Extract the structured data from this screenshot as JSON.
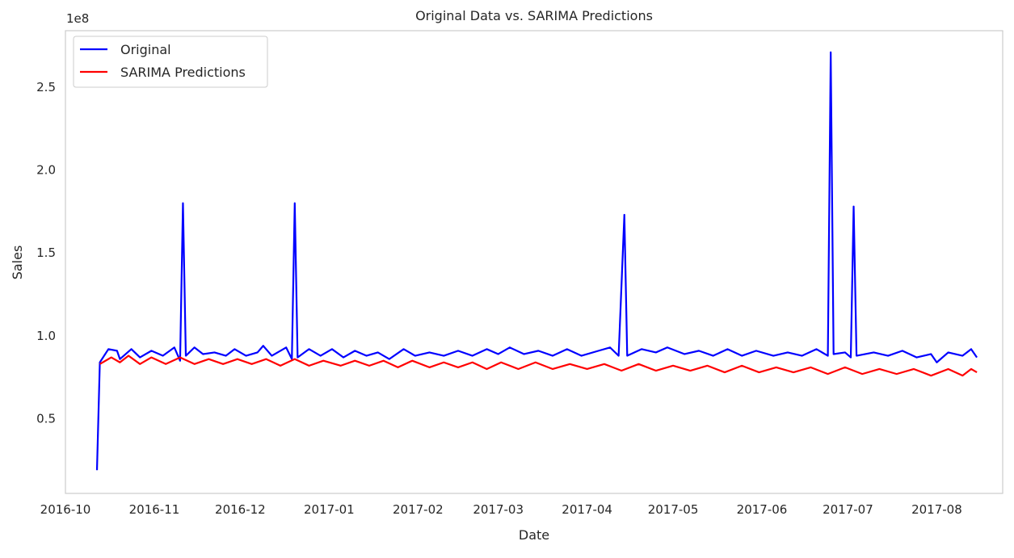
{
  "chart_data": {
    "type": "line",
    "title": "Original Data vs. SARIMA Predictions",
    "xlabel": "Date",
    "ylabel": "Sales",
    "y_offset_label": "1e8",
    "y_scale": 100000000,
    "xlim": [
      "2016-10-01",
      "2017-08-24"
    ],
    "ylim": [
      5000000,
      284000000
    ],
    "grid": false,
    "legend_position": "top-left",
    "x_ticks": [
      {
        "date": "2016-10-01",
        "label": "2016-10"
      },
      {
        "date": "2016-11-01",
        "label": "2016-11"
      },
      {
        "date": "2016-12-01",
        "label": "2016-12"
      },
      {
        "date": "2017-01-01",
        "label": "2017-01"
      },
      {
        "date": "2017-02-01",
        "label": "2017-02"
      },
      {
        "date": "2017-03-01",
        "label": "2017-03"
      },
      {
        "date": "2017-04-01",
        "label": "2017-04"
      },
      {
        "date": "2017-05-01",
        "label": "2017-05"
      },
      {
        "date": "2017-06-01",
        "label": "2017-06"
      },
      {
        "date": "2017-07-01",
        "label": "2017-07"
      },
      {
        "date": "2017-08-01",
        "label": "2017-08"
      }
    ],
    "y_ticks": [
      {
        "value": 50000000,
        "label": "0.5"
      },
      {
        "value": 100000000,
        "label": "1.0"
      },
      {
        "value": 150000000,
        "label": "1.5"
      },
      {
        "value": 200000000,
        "label": "2.0"
      },
      {
        "value": 250000000,
        "label": "2.5"
      }
    ],
    "series": [
      {
        "name": "Original",
        "color": "#0000ff",
        "points": [
          [
            "2016-10-12",
            19000000
          ],
          [
            "2016-10-13",
            84000000
          ],
          [
            "2016-10-16",
            92000000
          ],
          [
            "2016-10-19",
            91000000
          ],
          [
            "2016-10-20",
            86000000
          ],
          [
            "2016-10-24",
            92000000
          ],
          [
            "2016-10-27",
            87000000
          ],
          [
            "2016-10-31",
            91000000
          ],
          [
            "2016-11-04",
            88000000
          ],
          [
            "2016-11-08",
            93000000
          ],
          [
            "2016-11-10",
            85000000
          ],
          [
            "2016-11-11",
            180000000
          ],
          [
            "2016-11-12",
            88000000
          ],
          [
            "2016-11-15",
            93000000
          ],
          [
            "2016-11-18",
            89000000
          ],
          [
            "2016-11-22",
            90000000
          ],
          [
            "2016-11-26",
            88000000
          ],
          [
            "2016-11-29",
            92000000
          ],
          [
            "2016-12-03",
            88000000
          ],
          [
            "2016-12-07",
            90000000
          ],
          [
            "2016-12-09",
            94000000
          ],
          [
            "2016-12-12",
            88000000
          ],
          [
            "2016-12-17",
            93000000
          ],
          [
            "2016-12-19",
            86000000
          ],
          [
            "2016-12-20",
            180000000
          ],
          [
            "2016-12-21",
            87000000
          ],
          [
            "2016-12-25",
            92000000
          ],
          [
            "2016-12-29",
            88000000
          ],
          [
            "2017-01-02",
            92000000
          ],
          [
            "2017-01-06",
            87000000
          ],
          [
            "2017-01-10",
            91000000
          ],
          [
            "2017-01-14",
            88000000
          ],
          [
            "2017-01-18",
            90000000
          ],
          [
            "2017-01-22",
            86000000
          ],
          [
            "2017-01-27",
            92000000
          ],
          [
            "2017-01-31",
            88000000
          ],
          [
            "2017-02-05",
            90000000
          ],
          [
            "2017-02-10",
            88000000
          ],
          [
            "2017-02-15",
            91000000
          ],
          [
            "2017-02-20",
            88000000
          ],
          [
            "2017-02-25",
            92000000
          ],
          [
            "2017-03-01",
            89000000
          ],
          [
            "2017-03-05",
            93000000
          ],
          [
            "2017-03-10",
            89000000
          ],
          [
            "2017-03-15",
            91000000
          ],
          [
            "2017-03-20",
            88000000
          ],
          [
            "2017-03-25",
            92000000
          ],
          [
            "2017-03-30",
            88000000
          ],
          [
            "2017-04-05",
            91000000
          ],
          [
            "2017-04-09",
            93000000
          ],
          [
            "2017-04-12",
            88000000
          ],
          [
            "2017-04-14",
            173000000
          ],
          [
            "2017-04-15",
            88000000
          ],
          [
            "2017-04-20",
            92000000
          ],
          [
            "2017-04-25",
            90000000
          ],
          [
            "2017-04-29",
            93000000
          ],
          [
            "2017-05-05",
            89000000
          ],
          [
            "2017-05-10",
            91000000
          ],
          [
            "2017-05-15",
            88000000
          ],
          [
            "2017-05-20",
            92000000
          ],
          [
            "2017-05-25",
            88000000
          ],
          [
            "2017-05-30",
            91000000
          ],
          [
            "2017-06-05",
            88000000
          ],
          [
            "2017-06-10",
            90000000
          ],
          [
            "2017-06-15",
            88000000
          ],
          [
            "2017-06-20",
            92000000
          ],
          [
            "2017-06-24",
            88000000
          ],
          [
            "2017-06-25",
            271000000
          ],
          [
            "2017-06-26",
            89000000
          ],
          [
            "2017-06-30",
            90000000
          ],
          [
            "2017-07-02",
            87000000
          ],
          [
            "2017-07-03",
            178000000
          ],
          [
            "2017-07-04",
            88000000
          ],
          [
            "2017-07-10",
            90000000
          ],
          [
            "2017-07-15",
            88000000
          ],
          [
            "2017-07-20",
            91000000
          ],
          [
            "2017-07-25",
            87000000
          ],
          [
            "2017-07-30",
            89000000
          ],
          [
            "2017-08-01",
            84000000
          ],
          [
            "2017-08-05",
            90000000
          ],
          [
            "2017-08-10",
            88000000
          ],
          [
            "2017-08-13",
            92000000
          ],
          [
            "2017-08-15",
            87000000
          ]
        ]
      },
      {
        "name": "SARIMA Predictions",
        "color": "#ff0000",
        "points": [
          [
            "2016-10-13",
            83000000
          ],
          [
            "2016-10-17",
            87000000
          ],
          [
            "2016-10-20",
            84000000
          ],
          [
            "2016-10-23",
            88000000
          ],
          [
            "2016-10-27",
            83000000
          ],
          [
            "2016-10-31",
            87000000
          ],
          [
            "2016-11-05",
            83000000
          ],
          [
            "2016-11-10",
            87000000
          ],
          [
            "2016-11-15",
            83000000
          ],
          [
            "2016-11-20",
            86000000
          ],
          [
            "2016-11-25",
            83000000
          ],
          [
            "2016-11-30",
            86000000
          ],
          [
            "2016-12-05",
            83000000
          ],
          [
            "2016-12-10",
            86000000
          ],
          [
            "2016-12-15",
            82000000
          ],
          [
            "2016-12-20",
            86000000
          ],
          [
            "2016-12-25",
            82000000
          ],
          [
            "2016-12-30",
            85000000
          ],
          [
            "2017-01-05",
            82000000
          ],
          [
            "2017-01-10",
            85000000
          ],
          [
            "2017-01-15",
            82000000
          ],
          [
            "2017-01-20",
            85000000
          ],
          [
            "2017-01-25",
            81000000
          ],
          [
            "2017-01-30",
            85000000
          ],
          [
            "2017-02-05",
            81000000
          ],
          [
            "2017-02-10",
            84000000
          ],
          [
            "2017-02-15",
            81000000
          ],
          [
            "2017-02-20",
            84000000
          ],
          [
            "2017-02-25",
            80000000
          ],
          [
            "2017-03-02",
            84000000
          ],
          [
            "2017-03-08",
            80000000
          ],
          [
            "2017-03-14",
            84000000
          ],
          [
            "2017-03-20",
            80000000
          ],
          [
            "2017-03-26",
            83000000
          ],
          [
            "2017-04-01",
            80000000
          ],
          [
            "2017-04-07",
            83000000
          ],
          [
            "2017-04-13",
            79000000
          ],
          [
            "2017-04-19",
            83000000
          ],
          [
            "2017-04-25",
            79000000
          ],
          [
            "2017-05-01",
            82000000
          ],
          [
            "2017-05-07",
            79000000
          ],
          [
            "2017-05-13",
            82000000
          ],
          [
            "2017-05-19",
            78000000
          ],
          [
            "2017-05-25",
            82000000
          ],
          [
            "2017-05-31",
            78000000
          ],
          [
            "2017-06-06",
            81000000
          ],
          [
            "2017-06-12",
            78000000
          ],
          [
            "2017-06-18",
            81000000
          ],
          [
            "2017-06-24",
            77000000
          ],
          [
            "2017-06-30",
            81000000
          ],
          [
            "2017-07-06",
            77000000
          ],
          [
            "2017-07-12",
            80000000
          ],
          [
            "2017-07-18",
            77000000
          ],
          [
            "2017-07-24",
            80000000
          ],
          [
            "2017-07-30",
            76000000
          ],
          [
            "2017-08-05",
            80000000
          ],
          [
            "2017-08-10",
            76000000
          ],
          [
            "2017-08-13",
            80000000
          ],
          [
            "2017-08-15",
            78000000
          ]
        ]
      }
    ]
  }
}
